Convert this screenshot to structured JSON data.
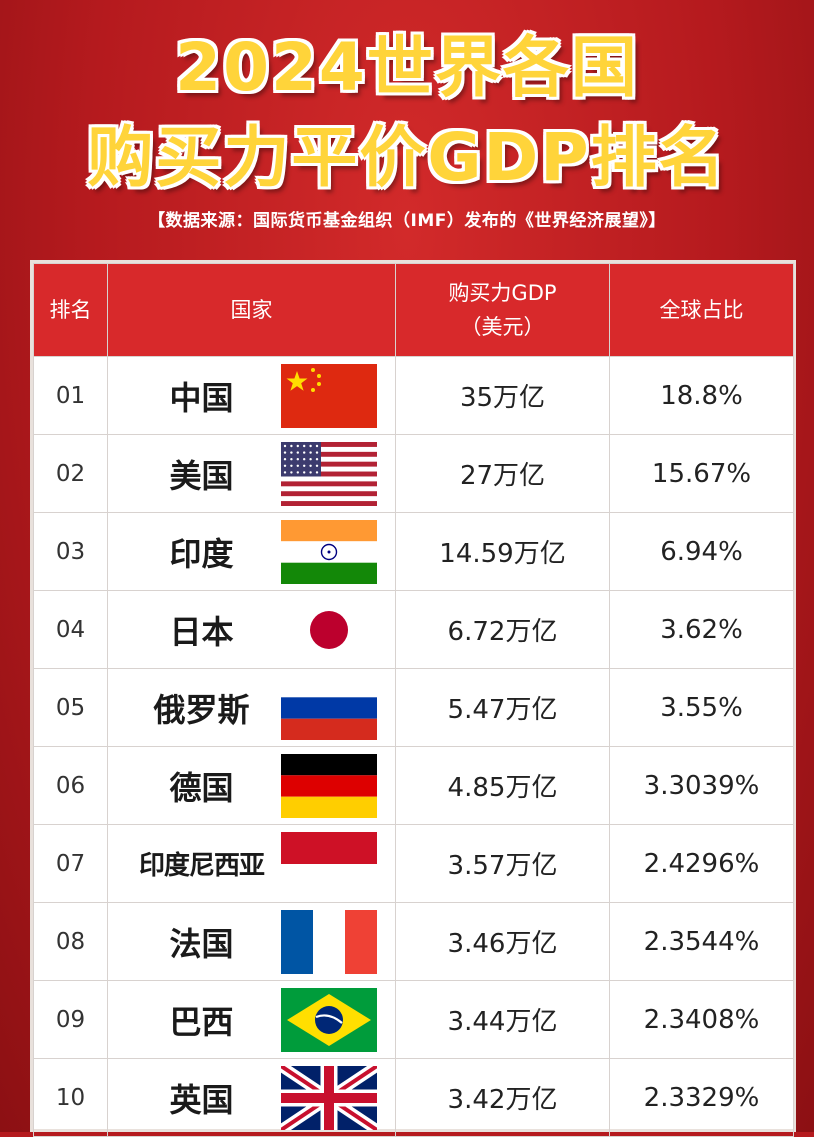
{
  "title": {
    "line1": "2024世界各国",
    "line2": "购买力平价GDP排名"
  },
  "source": "【数据来源：国际货币基金组织（IMF）发布的《世界经济展望》】",
  "chart_data": {
    "type": "table",
    "headers": {
      "rank": "排名",
      "country": "国家",
      "gdp_line1": "购买力GDP",
      "gdp_line2": "（美元）",
      "share": "全球占比"
    },
    "rows": [
      {
        "rank": "01",
        "country": "中国",
        "flag": "china-flag-icon",
        "gdp": "35万亿",
        "share": "18.8%"
      },
      {
        "rank": "02",
        "country": "美国",
        "flag": "usa-flag-icon",
        "gdp": "27万亿",
        "share": "15.67%"
      },
      {
        "rank": "03",
        "country": "印度",
        "flag": "india-flag-icon",
        "gdp": "14.59万亿",
        "share": "6.94%"
      },
      {
        "rank": "04",
        "country": "日本",
        "flag": "japan-flag-icon",
        "gdp": "6.72万亿",
        "share": "3.62%"
      },
      {
        "rank": "05",
        "country": "俄罗斯",
        "flag": "russia-flag-icon",
        "gdp": "5.47万亿",
        "share": "3.55%"
      },
      {
        "rank": "06",
        "country": "德国",
        "flag": "germany-flag-icon",
        "gdp": "4.85万亿",
        "share": "3.3039%"
      },
      {
        "rank": "07",
        "country": "印度尼西亚",
        "flag": "indonesia-flag-icon",
        "gdp": "3.57万亿",
        "share": "2.4296%"
      },
      {
        "rank": "08",
        "country": "法国",
        "flag": "france-flag-icon",
        "gdp": "3.46万亿",
        "share": "2.3544%"
      },
      {
        "rank": "09",
        "country": "巴西",
        "flag": "brazil-flag-icon",
        "gdp": "3.44万亿",
        "share": "2.3408%"
      },
      {
        "rank": "10",
        "country": "英国",
        "flag": "uk-flag-icon",
        "gdp": "3.42万亿",
        "share": "2.3329%"
      }
    ]
  },
  "colors": {
    "background": "#b51a1e",
    "title": "#ffd43a",
    "header": "#d8292b"
  }
}
